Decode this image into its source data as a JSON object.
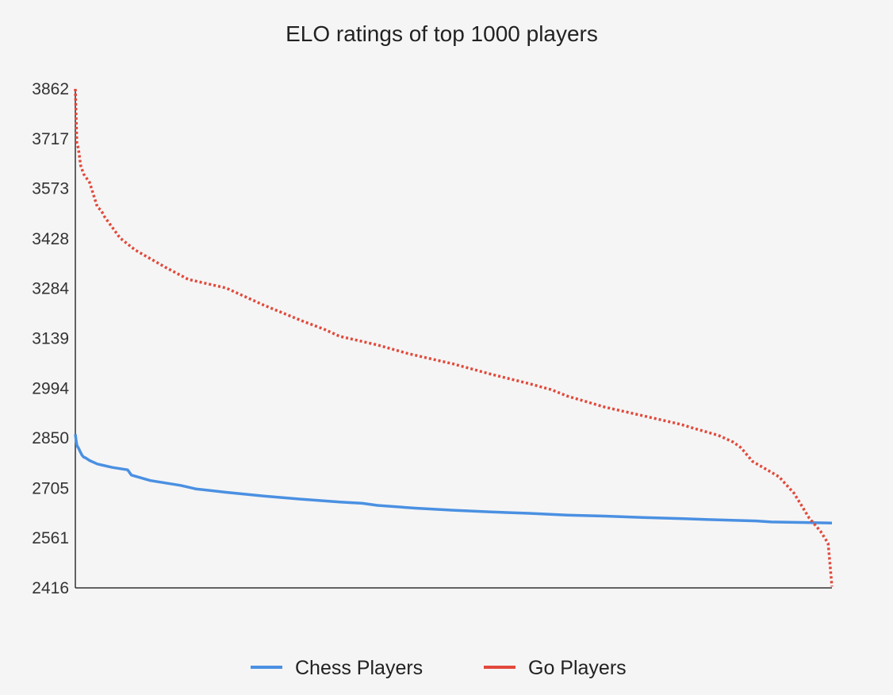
{
  "chart_data": {
    "type": "line",
    "title": "ELO ratings of top 1000 players",
    "xlabel": "",
    "ylabel": "",
    "x_range": [
      1,
      1000
    ],
    "ylim": [
      2416,
      3862
    ],
    "y_ticks": [
      3862,
      3717,
      3573,
      3428,
      3284,
      3139,
      2994,
      2850,
      2705,
      2561,
      2416
    ],
    "y_tick_labels": [
      "3862",
      "3717",
      "3573",
      "3428",
      "3284",
      "3139",
      "2994",
      "2850",
      "2705",
      "2561",
      "2416"
    ],
    "grid": false,
    "legend_position": "bottom-center",
    "series": [
      {
        "name": "Chess Players",
        "color": "#4a90e2",
        "style": "solid",
        "x": [
          1,
          2,
          3,
          4,
          5,
          8,
          10,
          12,
          15,
          20,
          30,
          50,
          70,
          75,
          100,
          140,
          160,
          200,
          250,
          300,
          350,
          380,
          400,
          450,
          500,
          550,
          600,
          650,
          700,
          750,
          800,
          850,
          900,
          920,
          950,
          1000
        ],
        "values": [
          2861,
          2843,
          2830,
          2825,
          2822,
          2808,
          2800,
          2795,
          2792,
          2785,
          2775,
          2765,
          2758,
          2743,
          2727,
          2713,
          2703,
          2693,
          2682,
          2673,
          2665,
          2661,
          2655,
          2647,
          2641,
          2636,
          2632,
          2627,
          2624,
          2620,
          2617,
          2613,
          2610,
          2607,
          2606,
          2604
        ]
      },
      {
        "name": "Go Players",
        "color": "#e2493b",
        "style": "dotted",
        "x": [
          1,
          2,
          3,
          5,
          8,
          12,
          20,
          30,
          35,
          40,
          50,
          60,
          80,
          100,
          120,
          150,
          170,
          200,
          220,
          250,
          300,
          330,
          350,
          400,
          440,
          500,
          550,
          600,
          630,
          650,
          700,
          750,
          800,
          820,
          850,
          870,
          880,
          895,
          930,
          950,
          970,
          985,
          995,
          998,
          1000
        ],
        "values": [
          3862,
          3780,
          3705,
          3690,
          3640,
          3615,
          3590,
          3520,
          3510,
          3490,
          3460,
          3430,
          3395,
          3370,
          3345,
          3310,
          3300,
          3285,
          3265,
          3235,
          3190,
          3165,
          3145,
          3120,
          3095,
          3065,
          3035,
          3008,
          2990,
          2972,
          2940,
          2915,
          2890,
          2877,
          2858,
          2838,
          2822,
          2783,
          2738,
          2690,
          2618,
          2580,
          2545,
          2470,
          2420
        ]
      }
    ]
  }
}
